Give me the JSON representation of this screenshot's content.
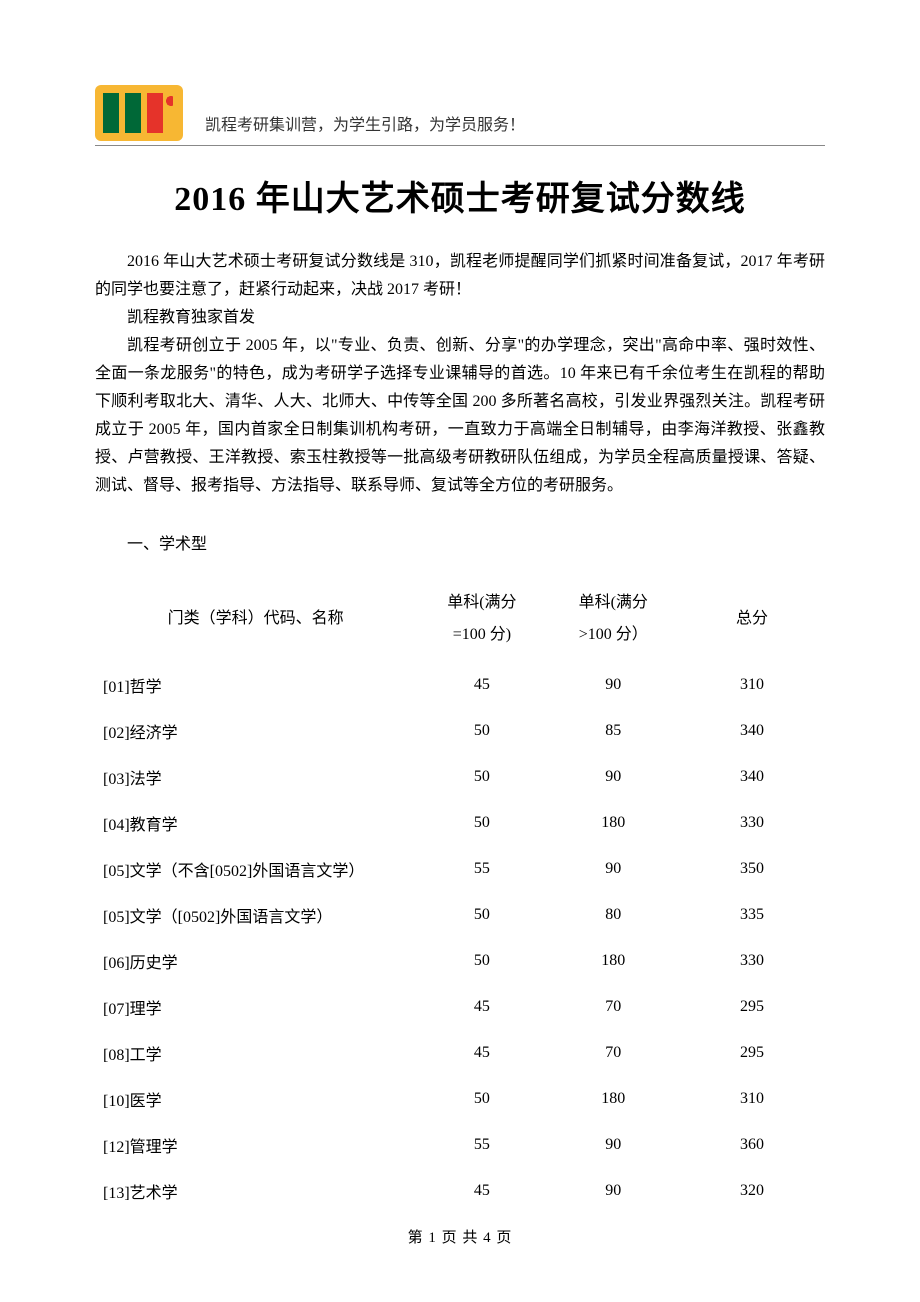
{
  "header": {
    "tagline": "凯程考研集训营，为学生引路，为学员服务！"
  },
  "title": "2016 年山大艺术硕士考研复试分数线",
  "intro": {
    "p1": "2016 年山大艺术硕士考研复试分数线是 310，凯程老师提醒同学们抓紧时间准备复试，2017 年考研的同学也要注意了，赶紧行动起来，决战 2017 考研！",
    "p2": "凯程教育独家首发",
    "p3": "凯程考研创立于 2005 年，以\"专业、负责、创新、分享\"的办学理念，突出\"高命中率、强时效性、全面一条龙服务\"的特色，成为考研学子选择专业课辅导的首选。10 年来已有千余位考生在凯程的帮助下顺利考取北大、清华、人大、北师大、中传等全国 200 多所著名高校，引发业界强烈关注。凯程考研成立于 2005 年，国内首家全日制集训机构考研，一直致力于高端全日制辅导，由李海洋教授、张鑫教授、卢营教授、王洋教授、索玉柱教授等一批高级考研教研队伍组成，为学员全程高质量授课、答疑、测试、督导、报考指导、方法指导、联系导师、复试等全方位的考研服务。"
  },
  "section_heading": "一、学术型",
  "table": {
    "headers": {
      "name": "门类（学科）代码、名称",
      "s1_line1": "单科(满分",
      "s1_line2": "=100 分)",
      "s2_line1": "单科(满分",
      "s2_line2": ">100 分）",
      "total": "总分"
    },
    "rows": [
      {
        "name": "[01]哲学",
        "s1": "45",
        "s2": "90",
        "s3": "310"
      },
      {
        "name": "[02]经济学",
        "s1": "50",
        "s2": "85",
        "s3": "340"
      },
      {
        "name": "[03]法学",
        "s1": "50",
        "s2": "90",
        "s3": "340"
      },
      {
        "name": "[04]教育学",
        "s1": "50",
        "s2": "180",
        "s3": "330"
      },
      {
        "name": "[05]文学（不含[0502]外国语言文学）",
        "s1": "55",
        "s2": "90",
        "s3": "350"
      },
      {
        "name": "[05]文学（[0502]外国语言文学）",
        "s1": "50",
        "s2": "80",
        "s3": "335"
      },
      {
        "name": "[06]历史学",
        "s1": "50",
        "s2": "180",
        "s3": "330"
      },
      {
        "name": "[07]理学",
        "s1": "45",
        "s2": "70",
        "s3": "295"
      },
      {
        "name": "[08]工学",
        "s1": "45",
        "s2": "70",
        "s3": "295"
      },
      {
        "name": "[10]医学",
        "s1": "50",
        "s2": "180",
        "s3": "310"
      },
      {
        "name": "[12]管理学",
        "s1": "55",
        "s2": "90",
        "s3": "360"
      },
      {
        "name": "[13]艺术学",
        "s1": "45",
        "s2": "90",
        "s3": "320"
      }
    ]
  },
  "footer": {
    "page_label": "第 1 页 共 4 页"
  }
}
